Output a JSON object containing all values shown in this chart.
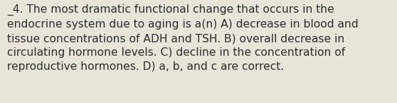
{
  "line1": "_4. The most dramatic functional change that occurs in the",
  "line2": "endocrine system due to aging is a(n) A) decrease in blood and",
  "line3": "tissue concentrations of ADH and TSH. B) overall decrease in",
  "line4": "circulating hormone levels. C) decline in the concentration of",
  "line5": "reproductive hormones. D) a, b, and c are correct.",
  "background_color": "#e8e4d8",
  "text_color": "#2d2d2d",
  "font_size": 11.2,
  "fig_width": 5.58,
  "fig_height": 1.46,
  "dpi": 100
}
